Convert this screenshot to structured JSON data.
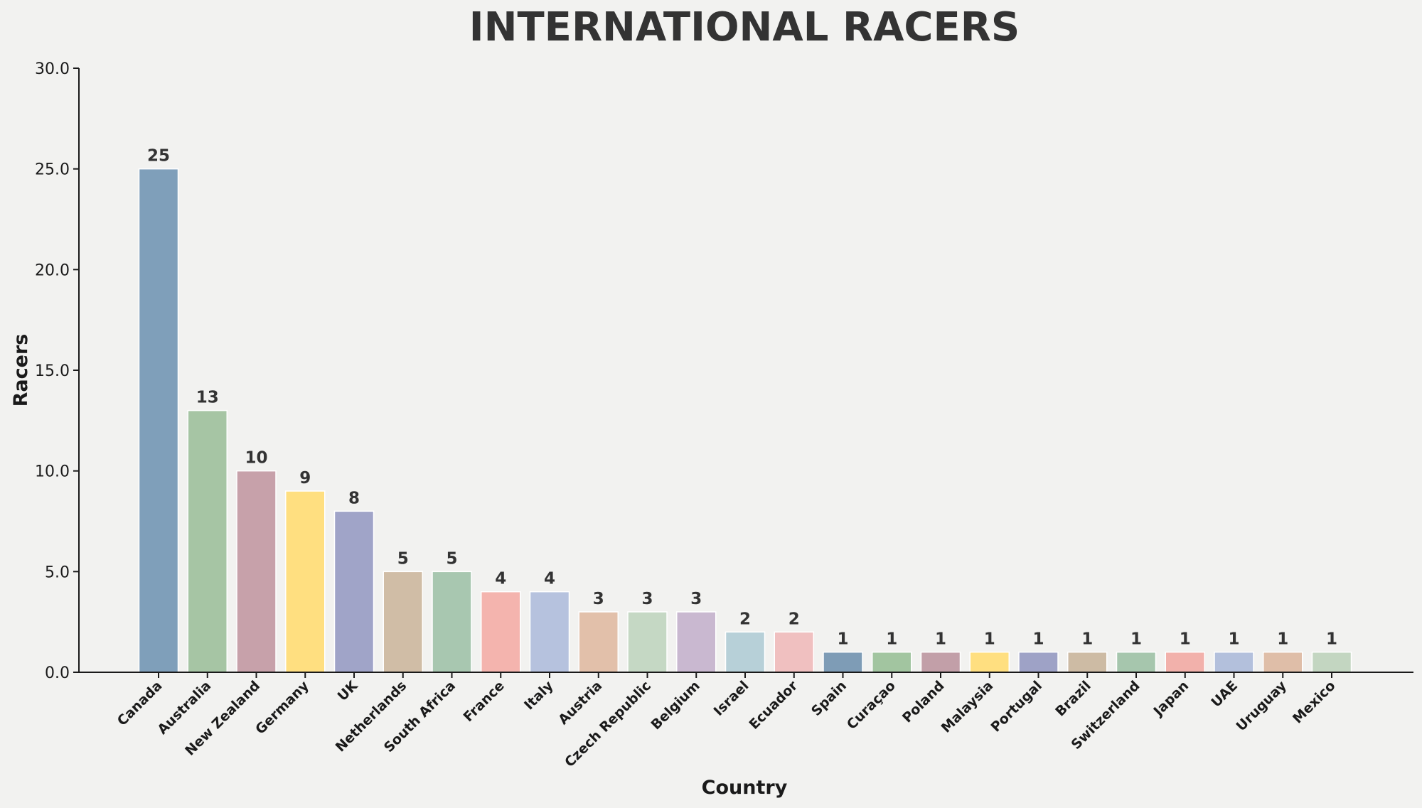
{
  "chart_data": {
    "type": "bar",
    "title": "INTERNATIONAL RACERS",
    "xlabel": "Country",
    "ylabel": "Racers",
    "ylim": [
      0,
      30
    ],
    "yticks": [
      "0.0",
      "5.0",
      "10.0",
      "15.0",
      "20.0",
      "25.0",
      "30.0"
    ],
    "grid": false,
    "categories": [
      "Canada",
      "Australia",
      "New Zealand",
      "Germany",
      "UK",
      "Netherlands",
      "South Africa",
      "France",
      "Italy",
      "Austria",
      "Czech Republic",
      "Belgium",
      "Israel",
      "Ecuador",
      "Spain",
      "Curaçao",
      "Poland",
      "Malaysia",
      "Portugal",
      "Brazil",
      "Switzerland",
      "Japan",
      "UAE",
      "Uruguay",
      "Mexico"
    ],
    "values": [
      25,
      13,
      10,
      9,
      8,
      5,
      5,
      4,
      4,
      3,
      3,
      3,
      2,
      2,
      1,
      1,
      1,
      1,
      1,
      1,
      1,
      1,
      1,
      1,
      1
    ],
    "colors": [
      "#7f9fba",
      "#a6c5a4",
      "#c7a1aa",
      "#ffdf80",
      "#a0a4c8",
      "#d0bda6",
      "#a8c7b0",
      "#f4b4ae",
      "#b6c2de",
      "#e2c0aa",
      "#c5d8c4",
      "#c9b8d0",
      "#b7d0d8",
      "#f0c0c0",
      "#7e9cb6",
      "#a2c5a0",
      "#c29fa8",
      "#ffdf80",
      "#9ea2c6",
      "#cdbba4",
      "#a6c6ad",
      "#f2b1ab",
      "#b3c0dc",
      "#dfbea8",
      "#c3d6c1"
    ],
    "edge_color": "#ffffff"
  }
}
